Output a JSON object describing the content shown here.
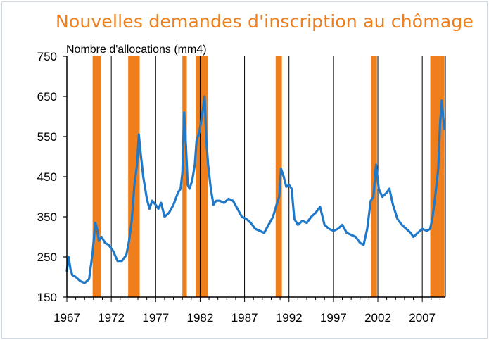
{
  "chart_data": {
    "type": "line",
    "title": "Nouvelles demandes d'inscription au chômage",
    "ylabel": "Nombre d'allocations (mm4)",
    "xlabel": "",
    "xlim": [
      1967,
      2009.6
    ],
    "ylim": [
      150,
      750
    ],
    "xticks": [
      "1967",
      "1972",
      "1977",
      "1982",
      "1987",
      "1992",
      "1997",
      "2002",
      "2007"
    ],
    "yticks": [
      "750",
      "650",
      "550",
      "450",
      "350",
      "250",
      "150"
    ],
    "grid": "vertical",
    "colors": {
      "series": "#1f78c8",
      "recession": "#ee7f1c",
      "title": "#ee7f1c"
    },
    "recessions": [
      [
        1969.9,
        1970.8
      ],
      [
        1973.9,
        1975.2
      ],
      [
        1980.0,
        1980.5
      ],
      [
        1981.5,
        1982.9
      ],
      [
        1990.5,
        1991.2
      ],
      [
        2001.2,
        2001.9
      ],
      [
        2007.9,
        2009.5
      ]
    ],
    "series": [
      {
        "name": "Nouvelles demandes",
        "x": [
          1967.0,
          1967.2,
          1967.4,
          1967.6,
          1968.0,
          1968.5,
          1969.0,
          1969.5,
          1969.9,
          1970.2,
          1970.4,
          1970.6,
          1970.9,
          1971.3,
          1971.7,
          1972.2,
          1972.7,
          1973.2,
          1973.7,
          1974.0,
          1974.3,
          1974.6,
          1974.9,
          1975.1,
          1975.3,
          1975.6,
          1976.0,
          1976.3,
          1976.6,
          1977.0,
          1977.3,
          1977.6,
          1978.0,
          1978.5,
          1979.0,
          1979.5,
          1979.8,
          1980.0,
          1980.2,
          1980.4,
          1980.6,
          1980.8,
          1981.1,
          1981.4,
          1981.6,
          1981.9,
          1982.2,
          1982.5,
          1982.7,
          1982.9,
          1983.2,
          1983.5,
          1983.8,
          1984.2,
          1984.7,
          1985.2,
          1985.7,
          1986.2,
          1986.7,
          1987.2,
          1987.7,
          1988.2,
          1988.7,
          1989.2,
          1989.7,
          1990.2,
          1990.6,
          1990.9,
          1991.1,
          1991.4,
          1991.7,
          1992.0,
          1992.3,
          1992.6,
          1993.0,
          1993.5,
          1994.0,
          1994.5,
          1995.0,
          1995.5,
          1996.0,
          1996.5,
          1997.0,
          1997.5,
          1998.0,
          1998.5,
          1999.0,
          1999.5,
          2000.0,
          2000.4,
          2000.8,
          2001.2,
          2001.5,
          2001.8,
          2002.1,
          2002.5,
          2003.0,
          2003.3,
          2003.7,
          2004.2,
          2004.7,
          2005.2,
          2005.7,
          2006.0,
          2006.5,
          2007.0,
          2007.5,
          2007.9,
          2008.2,
          2008.5,
          2008.8,
          2009.0,
          2009.2,
          2009.35,
          2009.5
        ],
        "values": [
          215,
          250,
          220,
          205,
          200,
          190,
          185,
          195,
          260,
          335,
          320,
          290,
          300,
          285,
          280,
          265,
          240,
          240,
          255,
          290,
          340,
          430,
          480,
          555,
          510,
          450,
          395,
          370,
          390,
          380,
          370,
          385,
          350,
          360,
          380,
          410,
          420,
          460,
          610,
          530,
          430,
          420,
          440,
          480,
          540,
          560,
          600,
          650,
          540,
          480,
          420,
          380,
          390,
          390,
          385,
          395,
          390,
          370,
          350,
          345,
          335,
          320,
          315,
          310,
          330,
          350,
          380,
          400,
          470,
          450,
          425,
          430,
          420,
          345,
          330,
          340,
          335,
          350,
          360,
          375,
          330,
          320,
          315,
          320,
          330,
          310,
          305,
          300,
          285,
          280,
          320,
          390,
          400,
          480,
          420,
          400,
          410,
          420,
          380,
          345,
          330,
          320,
          310,
          300,
          310,
          320,
          315,
          320,
          355,
          410,
          470,
          580,
          640,
          600,
          570
        ]
      }
    ]
  }
}
